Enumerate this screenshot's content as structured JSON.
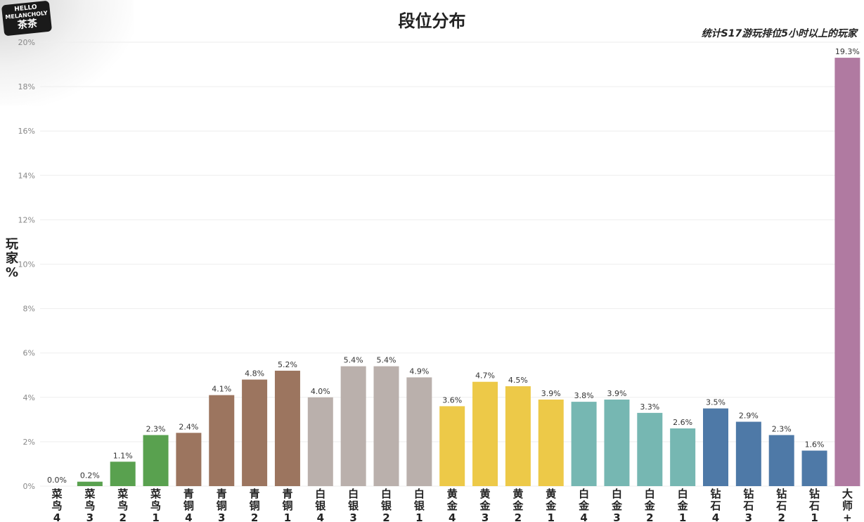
{
  "logo": {
    "line1": "HELLO",
    "line2": "MELANCHOLY",
    "line3": "茶茶"
  },
  "colors": {
    "rookie": "#59a14f",
    "bronze": "#9c755f",
    "silver": "#bab0ac",
    "gold": "#edc948",
    "platinum": "#76b7b2",
    "diamond": "#4e79a7",
    "master": "#b07aa1",
    "grid": "#eeeeee"
  },
  "chart_data": {
    "type": "bar",
    "title": "段位分布",
    "subtitle": "统计S17游玩排位5小时以上的玩家",
    "ylabel": "玩家%",
    "ylim": [
      0,
      20
    ],
    "yticks": [
      0,
      2,
      4,
      6,
      8,
      10,
      12,
      14,
      16,
      18,
      20
    ],
    "grid": true,
    "categories": [
      "菜鸟4",
      "菜鸟3",
      "菜鸟2",
      "菜鸟1",
      "青铜4",
      "青铜3",
      "青铜2",
      "青铜1",
      "白银4",
      "白银3",
      "白银2",
      "白银1",
      "黄金4",
      "黄金3",
      "黄金2",
      "黄金1",
      "白金4",
      "白金3",
      "白金2",
      "白金1",
      "钻石4",
      "钻石3",
      "钻石2",
      "钻石1",
      "大师+"
    ],
    "values": [
      0.0,
      0.2,
      1.1,
      2.3,
      2.4,
      4.1,
      4.8,
      5.2,
      4.0,
      5.4,
      5.4,
      4.9,
      3.6,
      4.7,
      4.5,
      3.9,
      3.8,
      3.9,
      3.3,
      2.6,
      3.5,
      2.9,
      2.3,
      1.6,
      19.3
    ],
    "tiers": [
      "rookie",
      "rookie",
      "rookie",
      "rookie",
      "bronze",
      "bronze",
      "bronze",
      "bronze",
      "silver",
      "silver",
      "silver",
      "silver",
      "gold",
      "gold",
      "gold",
      "gold",
      "platinum",
      "platinum",
      "platinum",
      "platinum",
      "diamond",
      "diamond",
      "diamond",
      "diamond",
      "master"
    ]
  }
}
